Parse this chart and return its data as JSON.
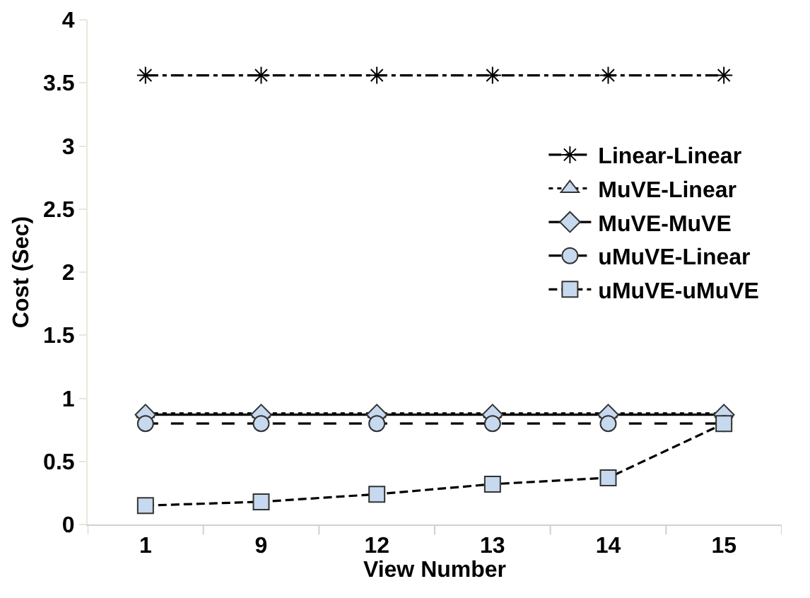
{
  "chart_data": {
    "type": "line",
    "xlabel": "View Number",
    "ylabel": "Cost (Sec)",
    "categories": [
      "1",
      "9",
      "12",
      "13",
      "14",
      "15"
    ],
    "ylim": [
      0,
      4
    ],
    "yticks": [
      0,
      0.5,
      1,
      1.5,
      2,
      2.5,
      3,
      3.5,
      4
    ],
    "grid": false,
    "legend": "top right",
    "series": [
      {
        "name": "Linear-Linear",
        "color": "#000000",
        "marker": "cross",
        "line_style": "dashdot",
        "values": [
          3.56,
          3.56,
          3.56,
          3.56,
          3.56,
          3.56
        ]
      },
      {
        "name": "MuVE-Linear",
        "color": "#000000",
        "marker": "triangle",
        "line_style": "dotted",
        "values": [
          0.88,
          0.88,
          0.88,
          0.88,
          0.88,
          0.88
        ]
      },
      {
        "name": "MuVE-MuVE",
        "color": "#000000",
        "marker": "diamond",
        "line_style": "solid",
        "values": [
          0.87,
          0.87,
          0.87,
          0.87,
          0.87,
          0.87
        ]
      },
      {
        "name": "uMuVE-Linear",
        "color": "#000000",
        "marker": "circle",
        "line_style": "dashed",
        "values": [
          0.8,
          0.8,
          0.8,
          0.8,
          0.8,
          0.8
        ]
      },
      {
        "name": "uMuVE-uMuVE",
        "color": "#000000",
        "marker": "square",
        "line_style": "shortdash",
        "values": [
          0.15,
          0.18,
          0.24,
          0.32,
          0.37,
          0.8
        ]
      }
    ]
  }
}
